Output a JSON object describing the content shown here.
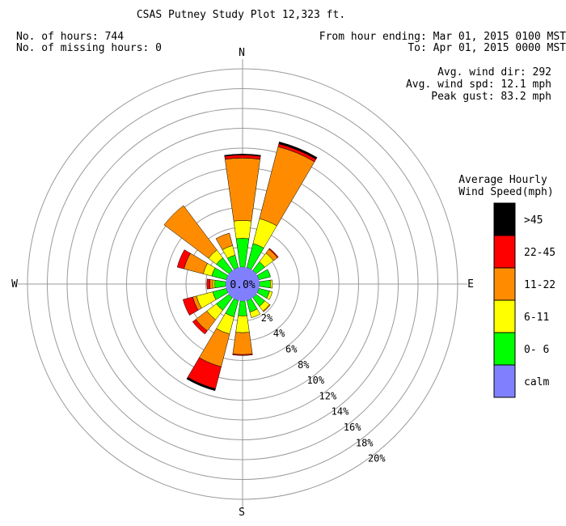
{
  "header": {
    "title": "CSAS Putney Study Plot 12,323 ft.",
    "hours_line": "No. of hours: 744",
    "missing_line": "No. of missing hours: 0",
    "from_line": "From hour ending: Mar 01, 2015 0100 MST",
    "to_line": "To: Apr 01, 2015 0000 MST",
    "avg_dir_line": "Avg. wind dir: 292",
    "avg_spd_line": "Avg. wind spd: 12.1 mph",
    "peak_gust_line": "Peak gust: 83.2 mph"
  },
  "compass": {
    "n": "N",
    "e": "E",
    "s": "S",
    "w": "W"
  },
  "legend": {
    "title_line1": "Average Hourly",
    "title_line2": "Wind Speed(mph)",
    "items": [
      {
        "label": ">45",
        "color": "#000000"
      },
      {
        "label": "22-45",
        "color": "#ff0000"
      },
      {
        "label": "11-22",
        "color": "#ff8c00"
      },
      {
        "label": "6-11",
        "color": "#ffff00"
      },
      {
        "label": "0- 6",
        "color": "#00ff00"
      },
      {
        "label": "calm",
        "color": "#8080ff"
      }
    ]
  },
  "chart_data": {
    "type": "windrose",
    "calm_label": "0.0%",
    "calm_percent": 0.0,
    "ring_percents": [
      2,
      4,
      6,
      8,
      10,
      12,
      14,
      16,
      18,
      20
    ],
    "ring_labels": [
      "2%",
      "4%",
      "6%",
      "8%",
      "10%",
      "12%",
      "14%",
      "16%",
      "18%",
      "20%"
    ],
    "speed_bins": [
      {
        "name": "0- 6",
        "color": "#00ff00"
      },
      {
        "name": "6-11",
        "color": "#ffff00"
      },
      {
        "name": "11-22",
        "color": "#ff8c00"
      },
      {
        "name": "22-45",
        "color": "#ff0000"
      },
      {
        "name": ">45",
        "color": "#000000"
      }
    ],
    "directions": [
      {
        "dir": "N",
        "deg": 0,
        "cumulative": [
          2.9,
          4.7,
          11.0,
          11.3,
          11.4
        ]
      },
      {
        "dir": "NNE",
        "deg": 22.5,
        "cumulative": [
          2.5,
          5.1,
          12.6,
          12.9,
          13.1
        ]
      },
      {
        "dir": "NE",
        "deg": 45,
        "cumulative": [
          1.1,
          2.2,
          2.7,
          2.8,
          2.8
        ]
      },
      {
        "dir": "ENE",
        "deg": 67.5,
        "cumulative": [
          1.2,
          1.2,
          1.2,
          1.2,
          1.2
        ]
      },
      {
        "dir": "E",
        "deg": 90,
        "cumulative": [
          1.1,
          1.3,
          1.3,
          1.3,
          1.3
        ]
      },
      {
        "dir": "ESE",
        "deg": 112.5,
        "cumulative": [
          1.1,
          1.4,
          1.4,
          1.4,
          1.4
        ]
      },
      {
        "dir": "SE",
        "deg": 135,
        "cumulative": [
          1.1,
          1.7,
          1.8,
          1.8,
          1.8
        ]
      },
      {
        "dir": "SSE",
        "deg": 157.5,
        "cumulative": [
          1.2,
          1.8,
          1.8,
          1.8,
          1.8
        ]
      },
      {
        "dir": "S",
        "deg": 180,
        "cumulative": [
          1.5,
          3.2,
          5.4,
          5.5,
          5.5
        ]
      },
      {
        "dir": "SSW",
        "deg": 202.5,
        "cumulative": [
          1.7,
          3.5,
          6.9,
          9.2,
          9.4
        ]
      },
      {
        "dir": "SW",
        "deg": 225,
        "cumulative": [
          1.6,
          2.8,
          4.2,
          4.6,
          4.6
        ]
      },
      {
        "dir": "WSW",
        "deg": 247.5,
        "cumulative": [
          1.4,
          3.1,
          3.5,
          4.5,
          4.5
        ]
      },
      {
        "dir": "W",
        "deg": 270,
        "cumulative": [
          1.1,
          1.3,
          1.6,
          1.9,
          1.9
        ]
      },
      {
        "dir": "WNW",
        "deg": 292.5,
        "cumulative": [
          1.5,
          2.4,
          4.4,
          5.1,
          5.1
        ]
      },
      {
        "dir": "NW",
        "deg": 315,
        "cumulative": [
          1.6,
          2.6,
          8.2,
          8.2,
          8.2
        ]
      },
      {
        "dir": "NNW",
        "deg": 337.5,
        "cumulative": [
          1.3,
          2.3,
          3.6,
          3.6,
          3.6
        ]
      }
    ]
  }
}
